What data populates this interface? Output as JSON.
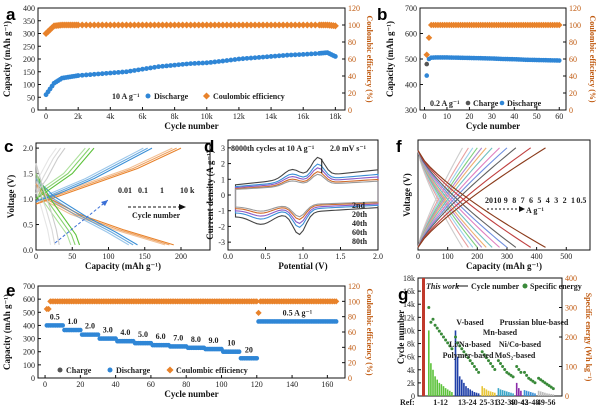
{
  "panels": {
    "a": {
      "label": "a",
      "chart_data": {
        "type": "scatter",
        "x": [
          0,
          500,
          1000,
          1500,
          2000,
          3000,
          4000,
          5000,
          6000,
          7000,
          8000,
          9000,
          10000,
          11000,
          12000,
          13000,
          14000,
          15000,
          16000,
          17000,
          17500,
          18000
        ],
        "series": [
          {
            "name": "Discharge",
            "axis": "left",
            "color": "#2f86d6",
            "values": [
              60,
              105,
              125,
              130,
              135,
              140,
              145,
              150,
              160,
              170,
              176,
              182,
              185,
              192,
              200,
              205,
              210,
              215,
              218,
              222,
              225,
              210
            ]
          },
          {
            "name": "Coulombic efficiency",
            "axis": "right",
            "color": "#e8822a",
            "values": [
              90,
              99,
              100,
              100,
              100,
              100,
              100,
              100,
              100,
              100,
              100,
              100,
              100,
              100,
              100,
              100,
              100,
              100,
              100,
              100,
              100,
              99
            ]
          }
        ],
        "xlabel": "Cycle number",
        "ylabel": "Capacity (mAh g⁻¹)",
        "y2label": "Coulombic efficiency (%)",
        "xticks": [
          "0",
          "2k",
          "4k",
          "6k",
          "8k",
          "10k",
          "12k",
          "14k",
          "16k",
          "18k"
        ],
        "xlim": [
          -500,
          18600
        ],
        "ylim": [
          0,
          400
        ],
        "y2lim": [
          0,
          120
        ],
        "yticks": [
          "0",
          "50",
          "100",
          "150",
          "200",
          "250",
          "300",
          "350",
          "400"
        ],
        "y2ticks": [
          "0",
          "20",
          "40",
          "60",
          "80",
          "100",
          "120"
        ],
        "annotation": "10 A g⁻¹"
      }
    },
    "b": {
      "label": "b",
      "chart_data": {
        "type": "scatter",
        "x": [
          1,
          2,
          3,
          5,
          10,
          15,
          20,
          25,
          30,
          35,
          40,
          45,
          50,
          55,
          60
        ],
        "series": [
          {
            "name": "Discharge",
            "axis": "left",
            "color": "#2f86d6",
            "values": [
              435,
              500,
              505,
              506,
              506,
              505,
              504,
              503,
              502,
              500,
              499,
              497,
              496,
              495,
              494
            ]
          },
          {
            "name": "Charge",
            "axis": "left",
            "color": "#555555",
            "values": [
              480,
              500,
              505,
              506,
              506,
              505,
              504,
              503,
              502,
              500,
              499,
              497,
              496,
              495,
              494
            ]
          },
          {
            "name": "Coulombic efficiency",
            "axis": "right",
            "color": "#e8822a",
            "values": [
              65,
              85,
              100,
              100,
              100,
              100,
              100,
              100,
              100,
              100,
              100,
              100,
              100,
              100,
              100
            ]
          }
        ],
        "xlabel": "Cycle number",
        "ylabel": "Capacity (mAh g⁻¹)",
        "y2label": "Coulombic efficiency (%)",
        "xlim": [
          -2,
          63
        ],
        "ylim": [
          300,
          700
        ],
        "y2lim": [
          0,
          120
        ],
        "xticks": [
          "0",
          "10",
          "20",
          "30",
          "40",
          "50",
          "60"
        ],
        "yticks": [
          "300",
          "400",
          "500",
          "600",
          "700"
        ],
        "y2ticks": [
          "0",
          "20",
          "40",
          "60",
          "80",
          "100",
          "120"
        ],
        "annotation": "0.2 A g⁻¹"
      }
    },
    "c": {
      "label": "c",
      "chart_data": {
        "type": "line",
        "xlabel": "Capacity (mAh g⁻¹)",
        "ylabel": "Voltage (V)",
        "xlim": [
          0,
          240
        ],
        "ylim": [
          0,
          2.1
        ],
        "xticks": [
          "0",
          "50",
          "100",
          "150",
          "200"
        ],
        "yticks": [
          "0.0",
          "0.5",
          "1.0",
          "1.5",
          "2.0"
        ],
        "series": [
          {
            "name": "0.01",
            "color": "#e8822a",
            "charge": [
              [
                0,
                0.9
              ],
              [
                30,
                1.05
              ],
              [
                80,
                1.3
              ],
              [
                140,
                1.6
              ],
              [
                200,
                2.0
              ]
            ],
            "discharge": [
              [
                0,
                1.3
              ],
              [
                20,
                1.0
              ],
              [
                60,
                0.7
              ],
              [
                120,
                0.4
              ],
              [
                190,
                0.1
              ]
            ]
          },
          {
            "name": "0.1",
            "color": "#3a8fd6",
            "charge": [
              [
                0,
                0.95
              ],
              [
                30,
                1.1
              ],
              [
                80,
                1.4
              ],
              [
                120,
                1.7
              ],
              [
                160,
                2.0
              ]
            ],
            "discharge": [
              [
                0,
                1.4
              ],
              [
                25,
                1.05
              ],
              [
                70,
                0.65
              ],
              [
                110,
                0.35
              ],
              [
                140,
                0.1
              ]
            ]
          },
          {
            "name": "1",
            "color": "#5cc23a",
            "charge": [
              [
                0,
                1.0
              ],
              [
                20,
                1.2
              ],
              [
                50,
                1.5
              ],
              [
                80,
                2.0
              ]
            ],
            "discharge": [
              [
                0,
                1.5
              ],
              [
                20,
                1.0
              ],
              [
                40,
                0.6
              ],
              [
                55,
                0.3
              ],
              [
                60,
                0.1
              ]
            ]
          },
          {
            "name": "10 k",
            "color": "#cccccc",
            "charge": [
              [
                0,
                1.1
              ],
              [
                15,
                1.4
              ],
              [
                30,
                1.8
              ],
              [
                40,
                2.0
              ]
            ],
            "discharge": [
              [
                0,
                1.7
              ],
              [
                10,
                1.2
              ],
              [
                20,
                0.8
              ],
              [
                28,
                0.4
              ],
              [
                32,
                0.1
              ]
            ]
          }
        ],
        "annotation_labels": [
          "0.01",
          "0.1",
          "1",
          "10 k"
        ],
        "annotation_caption": "Cycle number"
      }
    },
    "d": {
      "label": "d",
      "chart_data": {
        "type": "line",
        "xlabel": "Potential (V)",
        "ylabel": "Current density (A g⁻¹)",
        "xlim": [
          0,
          2.0
        ],
        "ylim": [
          -3.5,
          3.5
        ],
        "xticks": [
          "0.0",
          "0.5",
          "1.0",
          "1.5",
          "2.0"
        ],
        "yticks": [
          "-3",
          "-2",
          "-1",
          "0",
          "1",
          "2",
          "3"
        ],
        "series": [
          {
            "name": "2nd",
            "color": "#444444",
            "scale": 1.0
          },
          {
            "name": "20th",
            "color": "#3a8fd6",
            "scale": 0.82
          },
          {
            "name": "40th",
            "color": "#8a5bc8",
            "scale": 0.72
          },
          {
            "name": "60th",
            "color": "#d06b2a",
            "scale": 0.62
          },
          {
            "name": "80th",
            "color": "#999999",
            "scale": 0.55
          }
        ],
        "title_text": "8000th cycles at 10 A g⁻¹",
        "rate_text": "2.0 mV s⁻¹"
      }
    },
    "f": {
      "label": "f",
      "chart_data": {
        "type": "line",
        "xlabel": "Capacity (mAh g⁻¹)",
        "ylabel": "Voltage (V)",
        "xlim": [
          0,
          580
        ],
        "ylim": [
          0,
          2.1
        ],
        "xticks": [
          "0",
          "100",
          "200",
          "300",
          "400",
          "500"
        ],
        "rates": [
          "20",
          "10",
          "9",
          "8",
          "7",
          "6",
          "5",
          "4",
          "3",
          "2",
          "1",
          "0.5"
        ],
        "rate_unit": "A g⁻¹",
        "capacities": [
          150,
          170,
          185,
          200,
          215,
          230,
          250,
          275,
          300,
          330,
          380,
          430
        ],
        "colors": [
          "#cccccc",
          "#e8a0a0",
          "#9ad0ef",
          "#80d080",
          "#b08ad0",
          "#f0b070",
          "#70c0c0",
          "#e080c0",
          "#7090e0",
          "#606060",
          "#c04040",
          "#8a3a1a"
        ]
      }
    },
    "e": {
      "label": "e",
      "chart_data": {
        "type": "scatter",
        "xlabel": "Cycle number",
        "ylabel": "Capacity (mAh g⁻¹)",
        "y2label": "Coulombic efficiency (%)",
        "xlim": [
          -4,
          170
        ],
        "ylim": [
          0,
          700
        ],
        "y2lim": [
          0,
          120
        ],
        "xticks": [
          "0",
          "20",
          "40",
          "60",
          "80",
          "100",
          "120",
          "140",
          "160"
        ],
        "yticks": [
          "0",
          "100",
          "200",
          "300",
          "400",
          "500",
          "600",
          "700"
        ],
        "y2ticks": [
          "0",
          "20",
          "40",
          "60",
          "80",
          "100",
          "120"
        ],
        "segments": [
          {
            "rate": "0.5",
            "start": 1,
            "end": 10,
            "value": 400
          },
          {
            "rate": "1.0",
            "start": 11,
            "end": 20,
            "value": 365
          },
          {
            "rate": "2.0",
            "start": 21,
            "end": 30,
            "value": 330
          },
          {
            "rate": "3.0",
            "start": 31,
            "end": 40,
            "value": 300
          },
          {
            "rate": "4.0",
            "start": 41,
            "end": 50,
            "value": 280
          },
          {
            "rate": "5.0",
            "start": 51,
            "end": 60,
            "value": 265
          },
          {
            "rate": "6.0",
            "start": 61,
            "end": 70,
            "value": 250
          },
          {
            "rate": "7.0",
            "start": 71,
            "end": 80,
            "value": 240
          },
          {
            "rate": "8.0",
            "start": 81,
            "end": 90,
            "value": 230
          },
          {
            "rate": "9.0",
            "start": 91,
            "end": 100,
            "value": 220
          },
          {
            "rate": "10",
            "start": 101,
            "end": 110,
            "value": 200
          },
          {
            "rate": "20",
            "start": 111,
            "end": 120,
            "value": 150
          },
          {
            "rate": "0.5 A g⁻¹",
            "start": 121,
            "end": 165,
            "value": 430
          }
        ],
        "legend": [
          "Charge",
          "Discharge",
          "Coulombic efficiency"
        ]
      }
    },
    "g": {
      "label": "g",
      "chart_data": {
        "type": "bar",
        "ylabel": "Cycle number",
        "y2label": "Specific energy (Wh kg⁻¹)",
        "ylim": [
          0,
          18000
        ],
        "y2lim": [
          0,
          400
        ],
        "yticks": [
          "0",
          "2k",
          "4k",
          "6k",
          "8k",
          "10k",
          "12k",
          "14k",
          "16k",
          "18k"
        ],
        "y2ticks": [
          "0",
          "100",
          "200",
          "300",
          "400"
        ],
        "this_work": "This work",
        "ref_label": "Ref:",
        "groups": [
          {
            "name": "V-based",
            "range": "1-12",
            "color": "#5cc23a",
            "bars": [
              10000,
              5000,
              4000,
              3000,
              2500,
              2000,
              1800,
              1500,
              1200,
              1000,
              800,
              600
            ],
            "energy": [
              300,
              250,
              260,
              240,
              230,
              220,
              210,
              200,
              190,
              180,
              170,
              160
            ]
          },
          {
            "name": "Prussian blue-based",
            "range": "13-24",
            "color": "#1f3fa8",
            "bars": [
              10000,
              6000,
              3000,
              2500,
              2000,
              1500,
              1200,
              1000,
              800,
              600,
              500,
              400
            ],
            "energy": [
              200,
              180,
              170,
              160,
              150,
              140,
              130,
              120,
              110,
              100,
              90,
              80
            ]
          },
          {
            "name": "Mn-based",
            "range": "25-31",
            "color": "#e8c63a",
            "bars": [
              1500,
              1200,
              1000,
              800,
              700,
              600,
              500
            ],
            "energy": [
              150,
              140,
              130,
              120,
              110,
              100,
              90
            ]
          },
          {
            "name": "Li/Na-based",
            "range": "32-39",
            "color": "#3aa6c8",
            "bars": [
              1200,
              1000,
              900,
              800,
              700,
              600,
              500,
              400
            ],
            "energy": [
              120,
              110,
              100,
              90,
              80,
              75,
              70,
              65
            ]
          },
          {
            "name": "Ni/Co-based",
            "range": "40-42",
            "color": "#8a2aa8",
            "bars": [
              2000,
              1200,
              800
            ],
            "energy": [
              100,
              90,
              80
            ]
          },
          {
            "name": "Polymer-based",
            "range": "43-48",
            "color": "#3a8fd6",
            "bars": [
              900,
              800,
              700,
              600,
              500,
              400
            ],
            "energy": [
              80,
              70,
              60,
              55,
              50,
              45
            ]
          },
          {
            "name": "MoS₂-based",
            "range": "49-56",
            "color": "#bbbbbb",
            "bars": [
              800,
              700,
              600,
              500,
              400,
              350,
              300,
              250
            ],
            "energy": [
              60,
              55,
              50,
              45,
              40,
              35,
              30,
              25
            ]
          }
        ],
        "legend": [
          "Cycle number",
          "Specific energy"
        ]
      }
    }
  },
  "legend_a": {
    "annotation": "10 A g⁻¹",
    "discharge": "Discharge",
    "ce": "Coulombic efficiency"
  },
  "legend_b": {
    "annotation": "0.2 A g⁻¹",
    "charge": "Charge",
    "discharge": "Discharge"
  },
  "colors": {
    "discharge": "#2f86d6",
    "ce": "#e8822a",
    "charge": "#555555"
  }
}
